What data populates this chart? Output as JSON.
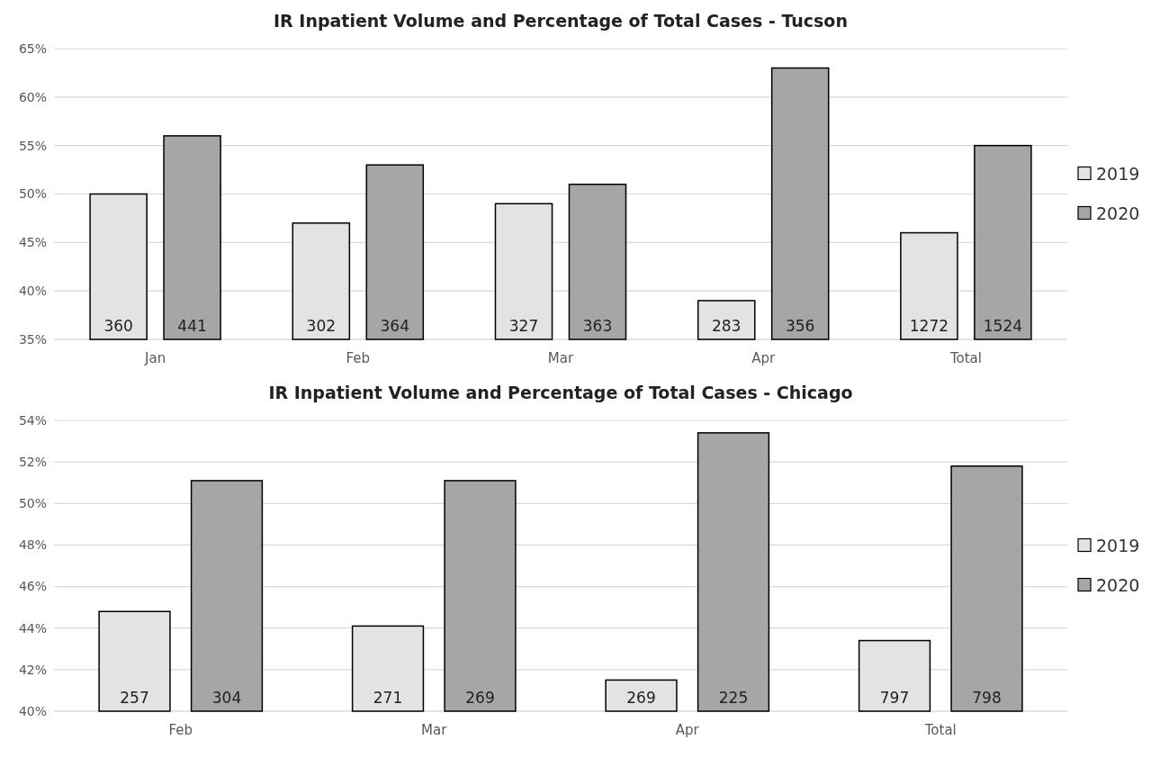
{
  "chart_data": [
    {
      "type": "bar",
      "title": "IR Inpatient Volume and Percentage of Total Cases - Tucson",
      "categories": [
        "Jan",
        "Feb",
        "Mar",
        "Apr",
        "Total"
      ],
      "series": [
        {
          "name": "2019",
          "color": "#e3e3e3",
          "values": [
            50,
            47,
            49,
            39,
            46
          ]
        },
        {
          "name": "2020",
          "color": "#a6a6a6",
          "values": [
            56,
            53,
            51,
            63,
            55
          ]
        }
      ],
      "annotations": [
        "360",
        "441",
        "302",
        "364",
        "327",
        "363",
        "283",
        "356",
        "1272",
        "1524"
      ],
      "ylim": [
        35,
        65
      ],
      "yticks": [
        {
          "value": 35,
          "label": "35%"
        },
        {
          "value": 40,
          "label": "40%"
        },
        {
          "value": 45,
          "label": "45%"
        },
        {
          "value": 50,
          "label": "50%"
        },
        {
          "value": 55,
          "label": "55%"
        },
        {
          "value": 60,
          "label": "60%"
        },
        {
          "value": 65,
          "label": "65%"
        }
      ],
      "grid": "y",
      "legend": "right"
    },
    {
      "type": "bar",
      "title": "IR Inpatient Volume and Percentage of Total Cases - Chicago",
      "categories": [
        "Feb",
        "Mar",
        "Apr",
        "Total"
      ],
      "series": [
        {
          "name": "2019",
          "color": "#e3e3e3",
          "values": [
            44.8,
            44.1,
            41.5,
            43.4
          ]
        },
        {
          "name": "2020",
          "color": "#a6a6a6",
          "values": [
            51.1,
            51.1,
            53.4,
            51.8
          ]
        }
      ],
      "annotations": [
        "257",
        "304",
        "271",
        "269",
        "269",
        "225",
        "797",
        "798"
      ],
      "ylim": [
        40,
        54
      ],
      "yticks": [
        {
          "value": 40,
          "label": "40%"
        },
        {
          "value": 42,
          "label": "42%"
        },
        {
          "value": 44,
          "label": "44%"
        },
        {
          "value": 46,
          "label": "46%"
        },
        {
          "value": 48,
          "label": "48%"
        },
        {
          "value": 50,
          "label": "50%"
        },
        {
          "value": 52,
          "label": "52%"
        },
        {
          "value": 54,
          "label": "54%"
        }
      ],
      "grid": "y",
      "legend": "right"
    }
  ]
}
